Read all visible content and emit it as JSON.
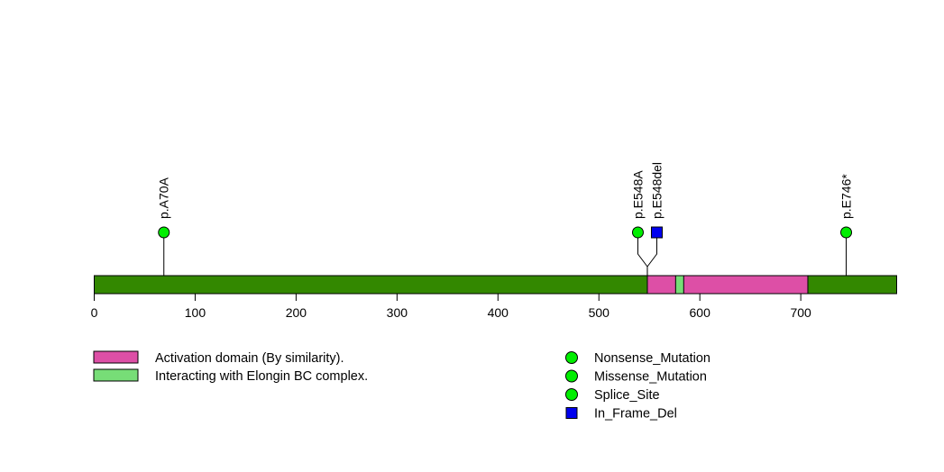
{
  "chart_data": {
    "type": "lollipop",
    "protein_length": 795,
    "xlim": [
      0,
      795
    ],
    "x_ticks": [
      0,
      100,
      200,
      300,
      400,
      500,
      600,
      700
    ],
    "backbone_color": "#338800",
    "domains": [
      {
        "name": "Activation domain (By similarity).",
        "start": 548,
        "end": 707,
        "color": "#DD4FA6"
      },
      {
        "name": "Interacting with Elongin BC complex.",
        "start": 576,
        "end": 584,
        "color": "#77DD77"
      }
    ],
    "mutations": [
      {
        "label": "p.A70A",
        "position": 69,
        "type": "Splice_Site",
        "count": 1
      },
      {
        "label": "p.E548A",
        "position": 548,
        "type": "Missense_Mutation",
        "count": 1
      },
      {
        "label": "p.E548del",
        "position": 548,
        "type": "In_Frame_Del",
        "count": 1
      },
      {
        "label": "p.E746*",
        "position": 745,
        "type": "Nonsense_Mutation",
        "count": 1
      }
    ],
    "mutation_legend": [
      {
        "type": "Nonsense_Mutation",
        "shape": "circle",
        "color": "#00EE00"
      },
      {
        "type": "Missense_Mutation",
        "shape": "circle",
        "color": "#00EE00"
      },
      {
        "type": "Splice_Site",
        "shape": "circle",
        "color": "#00EE00"
      },
      {
        "type": "In_Frame_Del",
        "shape": "square",
        "color": "#0000EE"
      }
    ]
  }
}
